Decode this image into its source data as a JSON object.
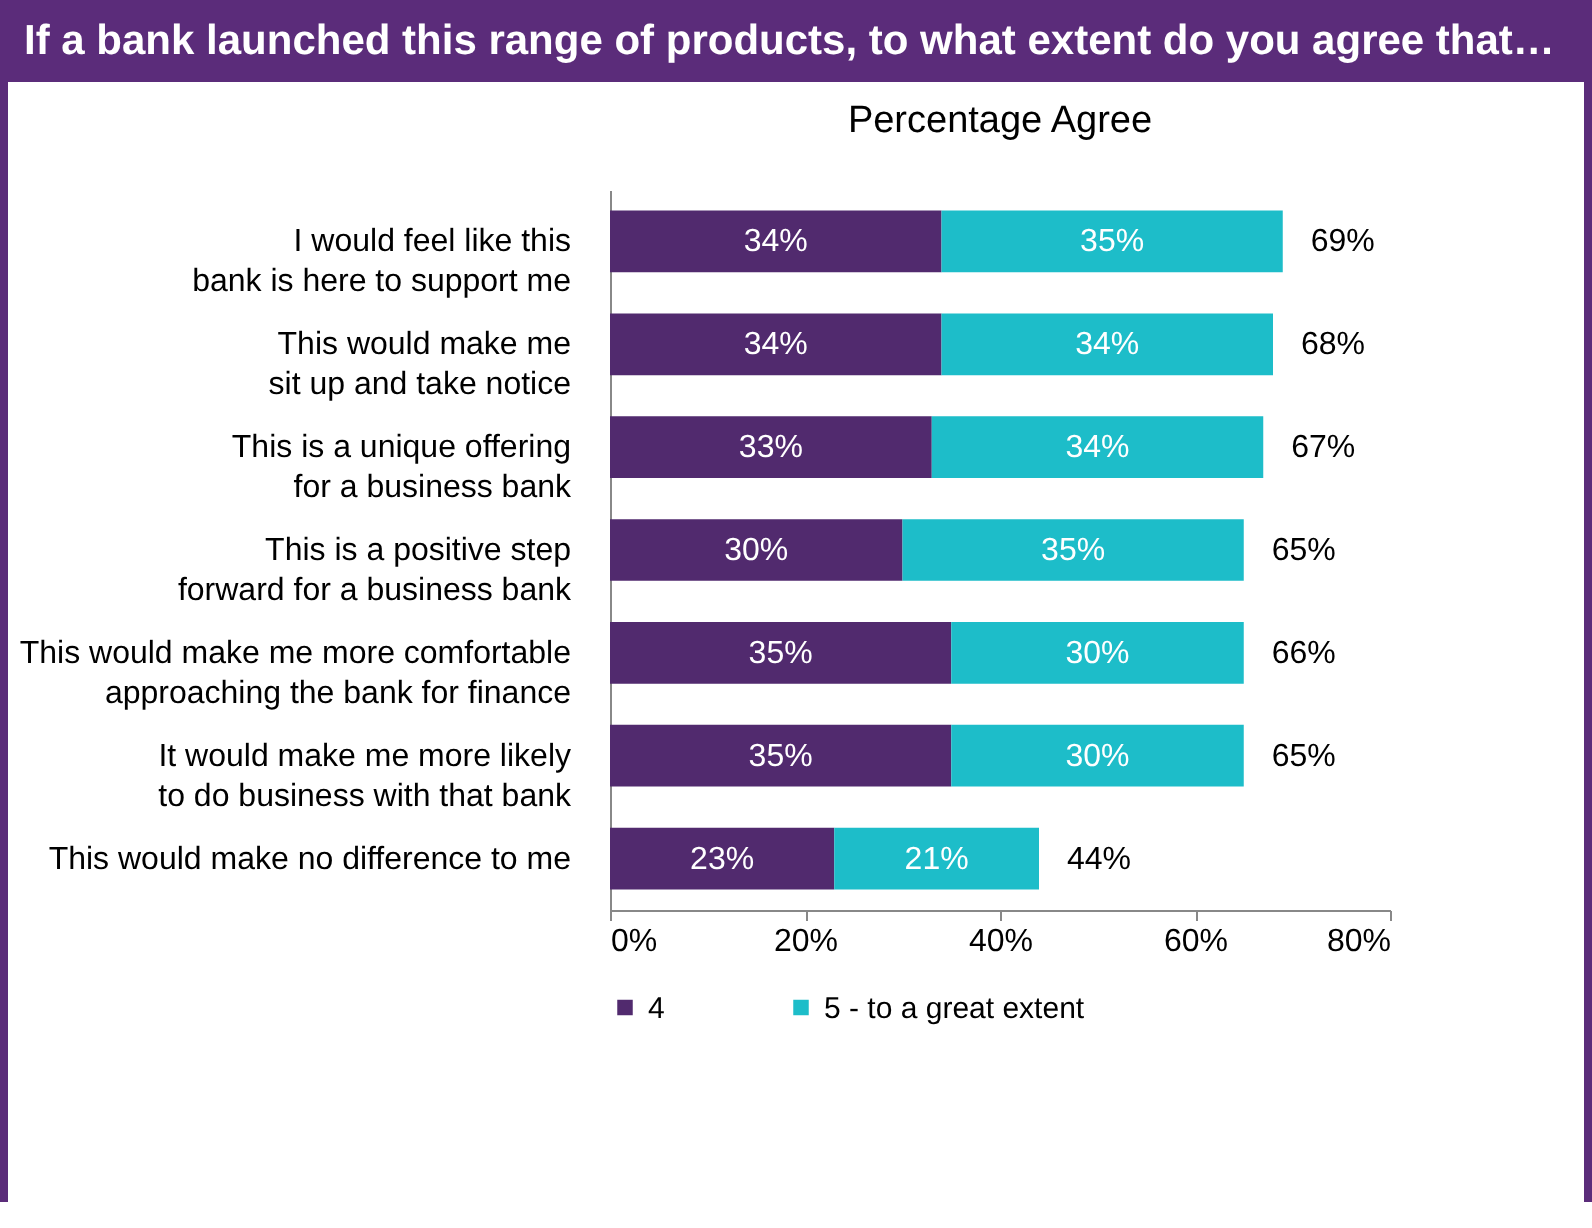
{
  "chart_data": {
    "type": "bar",
    "title": "If a bank launched this range of products, to what extent do you agree that…",
    "subtitle": "Percentage Agree",
    "orientation": "horizontal",
    "stacked": true,
    "legend": "bottom",
    "categories": [
      "I would feel like this\nbank is here to support me",
      "This would make me\nsit up and take notice",
      "This is a unique offering\nfor a business bank",
      "This is a positive step\nforward for a business bank",
      "This would make me more comfortable\napproaching the bank for finance",
      "It would make me more likely\nto do business with that bank",
      "This would make no difference to me"
    ],
    "series": [
      {
        "name": "4",
        "color": "#512a6e",
        "values": [
          34,
          34,
          33,
          30,
          35,
          35,
          23
        ],
        "value_labels": [
          "34%",
          "34%",
          "33%",
          "30%",
          "35%",
          "35%",
          "23%"
        ]
      },
      {
        "name": "5 - to a great extent",
        "color": "#1dbdc9",
        "values": [
          35,
          34,
          34,
          35,
          30,
          30,
          21
        ],
        "value_labels": [
          "35%",
          "34%",
          "34%",
          "35%",
          "30%",
          "30%",
          "21%"
        ]
      }
    ],
    "totals": [
      "69%",
      "68%",
      "67%",
      "65%",
      "66%",
      "65%",
      "44%"
    ],
    "xlim": [
      0,
      80
    ],
    "xticks": [
      {
        "value": 0,
        "label": "0%"
      },
      {
        "value": 20,
        "label": "20%"
      },
      {
        "value": 40,
        "label": "40%"
      },
      {
        "value": 60,
        "label": "60%"
      },
      {
        "value": 80,
        "label": "80%"
      }
    ]
  }
}
